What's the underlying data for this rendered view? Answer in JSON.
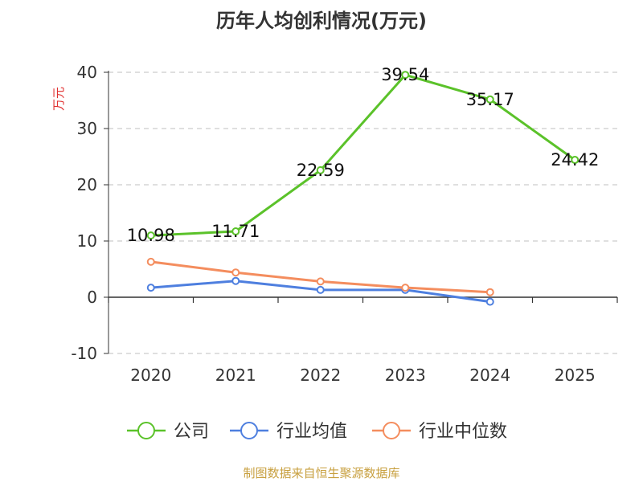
{
  "title": "历年人均创利情况(万元)",
  "source": "制图数据来自恒生聚源数据库",
  "chart_data": {
    "type": "line",
    "title": "历年人均创利情况(万元)",
    "ylabel": "万元",
    "ylim": [
      -10,
      40
    ],
    "yticks": [
      40,
      30,
      20,
      10,
      0,
      -10
    ],
    "categories": [
      "2020",
      "2021",
      "2022",
      "2023",
      "2024",
      "2025"
    ],
    "grid": true,
    "legend_position": "bottom",
    "series": [
      {
        "name": "公司",
        "color": "#5bc22a",
        "values": [
          10.98,
          11.71,
          22.59,
          39.54,
          35.17,
          24.42
        ],
        "labels": [
          "10.98",
          "11.71",
          "22.59",
          "39.54",
          "35.17",
          "24.42"
        ]
      },
      {
        "name": "行业均值",
        "color": "#4e7fdf",
        "values": [
          1.7,
          2.9,
          1.3,
          1.3,
          -0.8,
          null
        ]
      },
      {
        "name": "行业中位数",
        "color": "#f48d5e",
        "values": [
          6.3,
          4.4,
          2.8,
          1.7,
          0.9,
          null
        ]
      }
    ]
  }
}
